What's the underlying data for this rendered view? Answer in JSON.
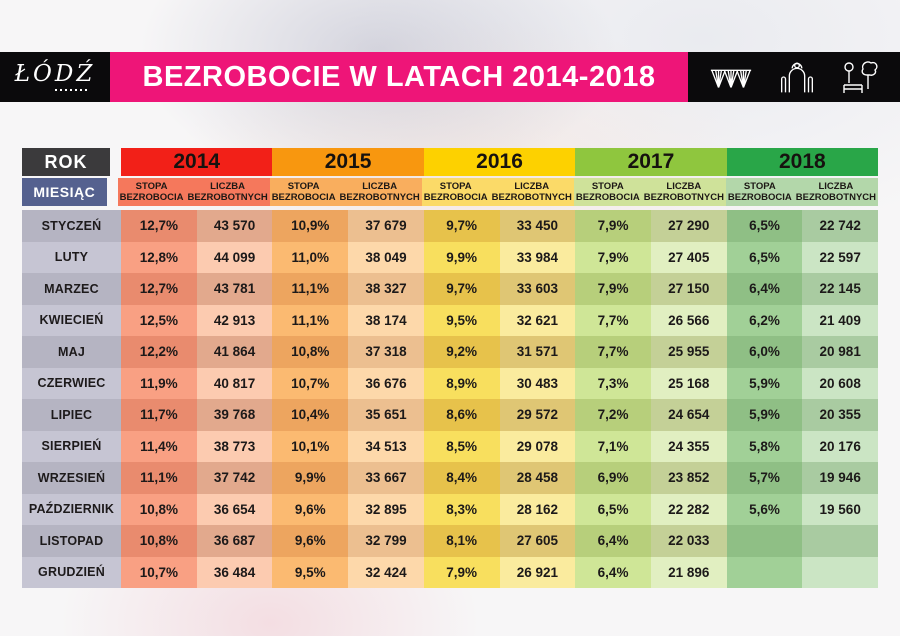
{
  "style": {
    "banner_pink": "#ee1578",
    "box_black": "#0b0a0c",
    "rok_bg": "#3b3a3c",
    "miesiac_bg": "#55618f",
    "month_odd": "#b5b4c2",
    "month_even": "#c6c5d3"
  },
  "header": {
    "logo_text": "ŁÓDŹ",
    "banner_title": "BEZROBOCIE W LATACH 2014-2018",
    "icons": [
      "bridge-icon",
      "gate-icon",
      "park-icon"
    ]
  },
  "table": {
    "corner_rok": "ROK",
    "corner_miesiac": "MIESIĄC",
    "metric_stopa": "STOPA BEZROBOCIA",
    "metric_liczba": "LICZBA BEZROBOTNYCH",
    "years": [
      {
        "label": "2014",
        "header": "#f22018",
        "sub": "#f5785c",
        "stopa_odd": "#e98b6e",
        "liczba_odd": "#e2a98d",
        "stopa_even": "#f9a083",
        "liczba_even": "#fccbb0"
      },
      {
        "label": "2015",
        "header": "#f8970f",
        "sub": "#f9ae5e",
        "stopa_odd": "#eda55f",
        "liczba_odd": "#ecbf90",
        "stopa_even": "#fbba71",
        "liczba_even": "#fdd8aa"
      },
      {
        "label": "2016",
        "header": "#fdd100",
        "sub": "#fbda68",
        "stopa_odd": "#e7c24b",
        "liczba_odd": "#dfc674",
        "stopa_even": "#f8df5e",
        "liczba_even": "#faeb9e"
      },
      {
        "label": "2017",
        "header": "#8fc63e",
        "sub": "#cfe29a",
        "stopa_odd": "#b7cf7b",
        "liczba_odd": "#c4d097",
        "stopa_even": "#cfe697",
        "liczba_even": "#e1efc1"
      },
      {
        "label": "2018",
        "header": "#29a648",
        "sub": "#b3d7aa",
        "stopa_odd": "#8fbf85",
        "liczba_odd": "#a9cba1",
        "stopa_even": "#a1d097",
        "liczba_even": "#cbe5c4"
      }
    ]
  },
  "chart_data": {
    "type": "table",
    "title": "BEZROBOCIE W LATACH 2014-2018",
    "col_header": "ROK",
    "row_header": "MIESIĄC",
    "years": [
      "2014",
      "2015",
      "2016",
      "2017",
      "2018"
    ],
    "metrics": [
      "STOPA BEZROBOCIA",
      "LICZBA BEZROBOTNYCH"
    ],
    "rows": [
      {
        "month": "STYCZEŃ",
        "values": [
          "12,7%",
          "43 570",
          "10,9%",
          "37 679",
          "9,7%",
          "33 450",
          "7,9%",
          "27 290",
          "6,5%",
          "22 742"
        ]
      },
      {
        "month": "LUTY",
        "values": [
          "12,8%",
          "44 099",
          "11,0%",
          "38 049",
          "9,9%",
          "33 984",
          "7,9%",
          "27 405",
          "6,5%",
          "22 597"
        ]
      },
      {
        "month": "MARZEC",
        "values": [
          "12,7%",
          "43 781",
          "11,1%",
          "38 327",
          "9,7%",
          "33 603",
          "7,9%",
          "27 150",
          "6,4%",
          "22 145"
        ]
      },
      {
        "month": "KWIECIEŃ",
        "values": [
          "12,5%",
          "42 913",
          "11,1%",
          "38 174",
          "9,5%",
          "32 621",
          "7,7%",
          "26 566",
          "6,2%",
          "21 409"
        ]
      },
      {
        "month": "MAJ",
        "values": [
          "12,2%",
          "41 864",
          "10,8%",
          "37 318",
          "9,2%",
          "31 571",
          "7,7%",
          "25 955",
          "6,0%",
          "20 981"
        ]
      },
      {
        "month": "CZERWIEC",
        "values": [
          "11,9%",
          "40 817",
          "10,7%",
          "36 676",
          "8,9%",
          "30 483",
          "7,3%",
          "25 168",
          "5,9%",
          "20 608"
        ]
      },
      {
        "month": "LIPIEC",
        "values": [
          "11,7%",
          "39 768",
          "10,4%",
          "35 651",
          "8,6%",
          "29 572",
          "7,2%",
          "24 654",
          "5,9%",
          "20 355"
        ]
      },
      {
        "month": "SIERPIEŃ",
        "values": [
          "11,4%",
          "38 773",
          "10,1%",
          "34 513",
          "8,5%",
          "29 078",
          "7,1%",
          "24 355",
          "5,8%",
          "20 176"
        ]
      },
      {
        "month": "WRZESIEŃ",
        "values": [
          "11,1%",
          "37 742",
          "9,9%",
          "33 667",
          "8,4%",
          "28 458",
          "6,9%",
          "23 852",
          "5,7%",
          "19 946"
        ]
      },
      {
        "month": "PAŹDZIERNIK",
        "values": [
          "10,8%",
          "36 654",
          "9,6%",
          "32 895",
          "8,3%",
          "28 162",
          "6,5%",
          "22 282",
          "5,6%",
          "19 560"
        ]
      },
      {
        "month": "LISTOPAD",
        "values": [
          "10,8%",
          "36 687",
          "9,6%",
          "32 799",
          "8,1%",
          "27 605",
          "6,4%",
          "22 033",
          "",
          ""
        ]
      },
      {
        "month": "GRUDZIEŃ",
        "values": [
          "10,7%",
          "36 484",
          "9,5%",
          "32 424",
          "7,9%",
          "26 921",
          "6,4%",
          "21 896",
          "",
          ""
        ]
      }
    ]
  }
}
